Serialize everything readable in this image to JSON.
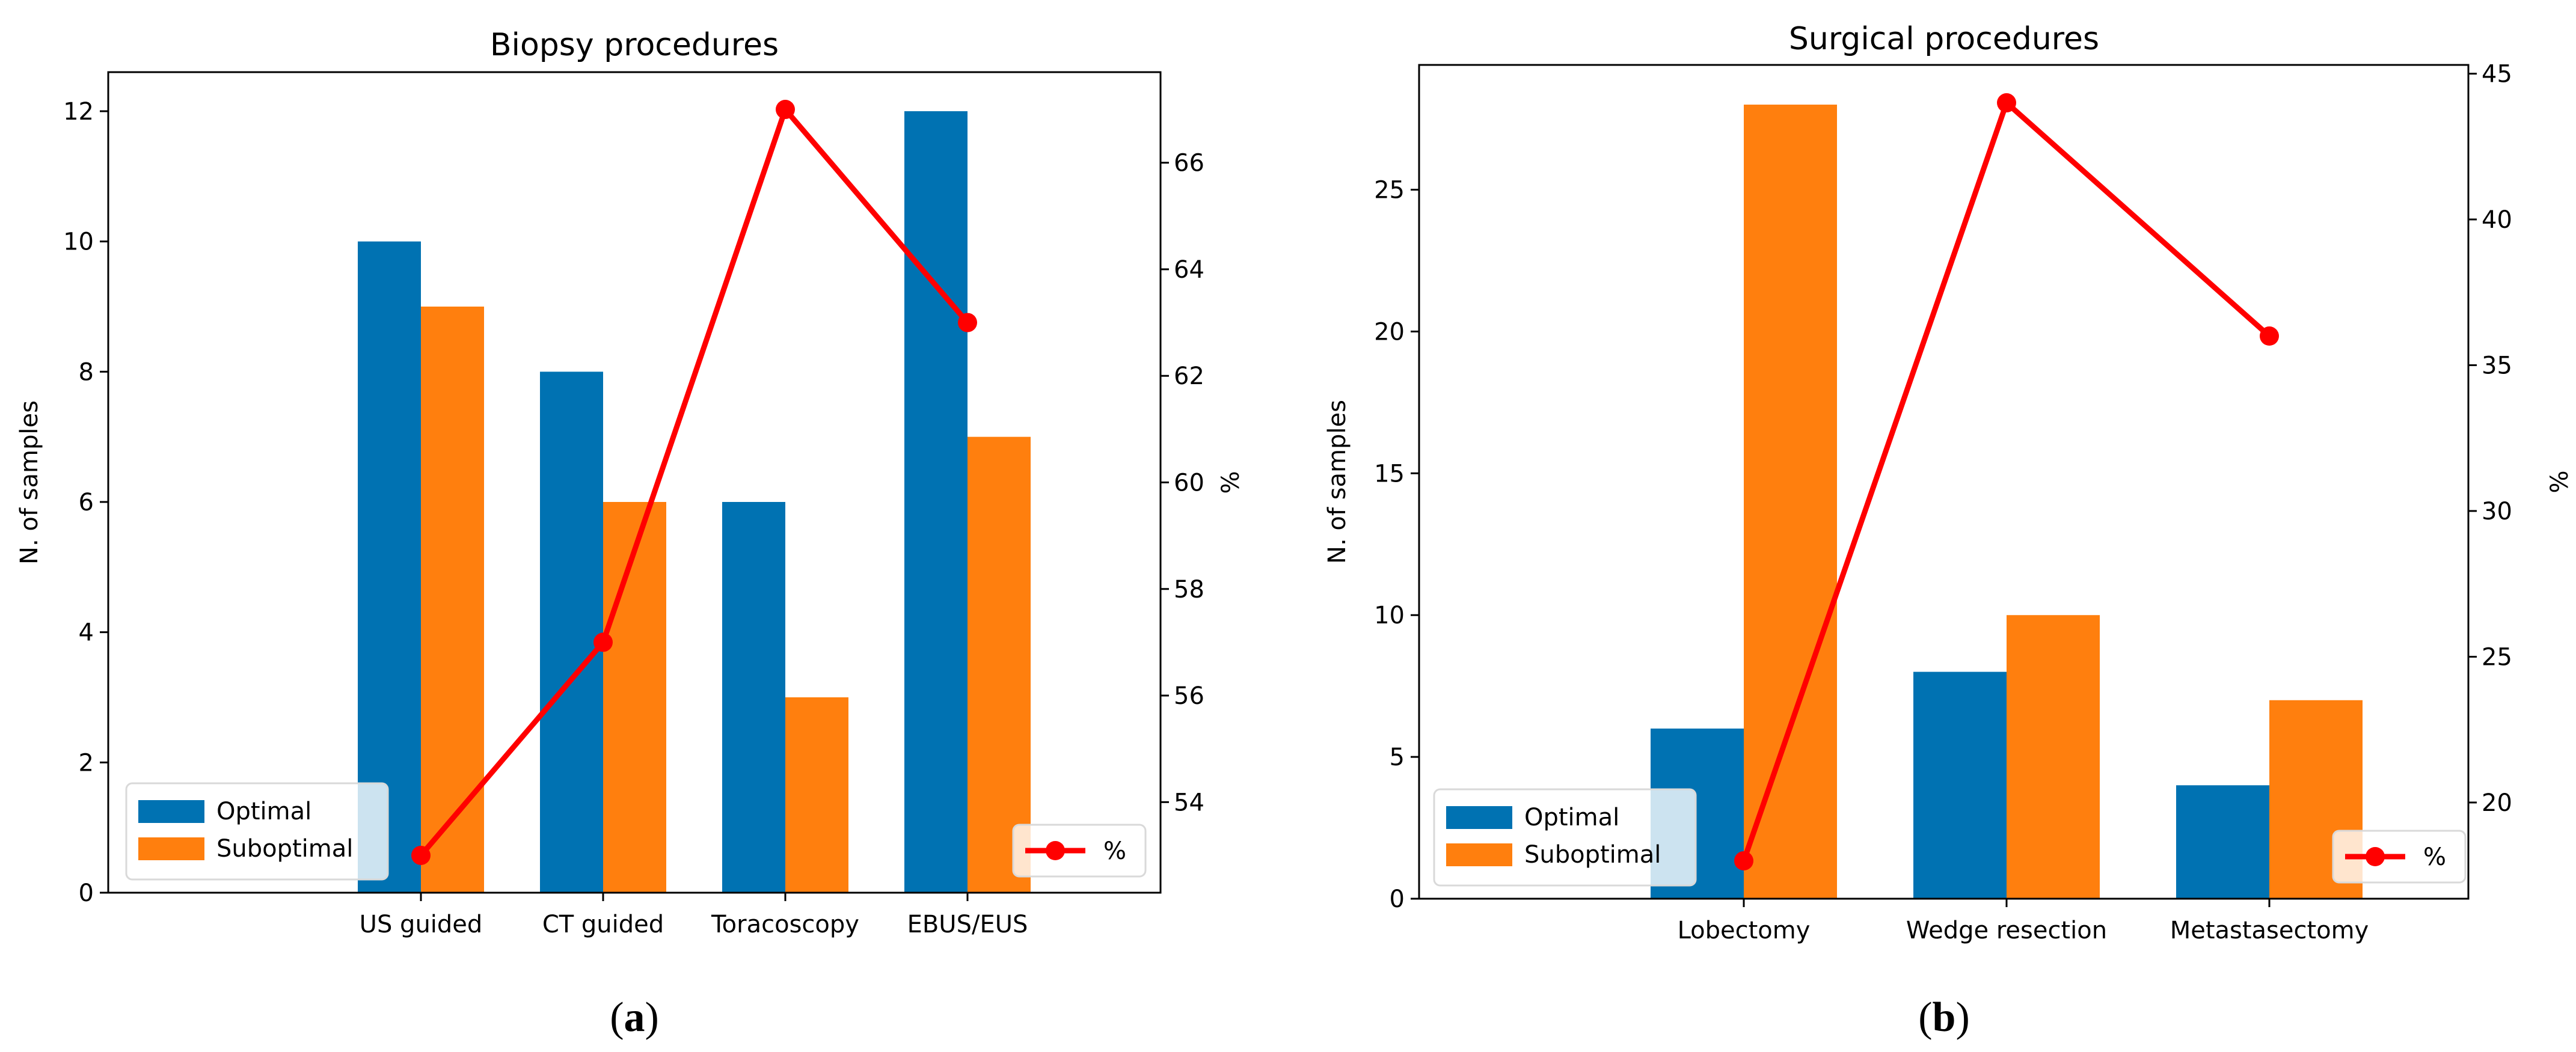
{
  "chart_data": [
    {
      "id": "a",
      "type": "bar",
      "title": "Biopsy procedures",
      "caption_letter": "a",
      "categories": [
        "US guided",
        "CT guided",
        "Toracoscopy",
        "EBUS/EUS"
      ],
      "series": [
        {
          "name": "Optimal",
          "color": "#0072b2",
          "values": [
            10,
            8,
            6,
            12
          ]
        },
        {
          "name": "Suboptimal",
          "color": "#ff7f0e",
          "values": [
            9,
            6,
            3,
            7
          ]
        }
      ],
      "line_series": {
        "name": "%",
        "color": "#ff0000",
        "values": [
          53,
          57,
          67,
          63
        ]
      },
      "xlabel": "",
      "ylabel": "N. of samples",
      "ylim": [
        0,
        12.6
      ],
      "yticks": [
        0,
        2,
        4,
        6,
        8,
        10,
        12
      ],
      "y2label": "%",
      "y2lim": [
        52.3,
        67.7
      ],
      "y2ticks": [
        54,
        56,
        58,
        60,
        62,
        64,
        66
      ],
      "legend_location": "lower-left",
      "line_legend_location": "lower-right",
      "grid": false
    },
    {
      "id": "b",
      "type": "bar",
      "title": "Surgical procedures",
      "caption_letter": "b",
      "categories": [
        "Lobectomy",
        "Wedge resection",
        "Metastasectomy"
      ],
      "series": [
        {
          "name": "Optimal",
          "color": "#0072b2",
          "values": [
            6,
            8,
            4
          ]
        },
        {
          "name": "Suboptimal",
          "color": "#ff7f0e",
          "values": [
            28,
            10,
            7
          ]
        }
      ],
      "line_series": {
        "name": "%",
        "color": "#ff0000",
        "values": [
          18,
          44,
          36
        ]
      },
      "xlabel": "",
      "ylabel": "N. of samples",
      "ylim": [
        0,
        29.4
      ],
      "yticks": [
        0,
        5,
        10,
        15,
        20,
        25
      ],
      "y2label": "%",
      "y2lim": [
        16.7,
        45.3
      ],
      "y2ticks": [
        20,
        25,
        30,
        35,
        40,
        45
      ],
      "legend_location": "lower-left",
      "line_legend_location": "lower-right",
      "grid": false
    }
  ]
}
